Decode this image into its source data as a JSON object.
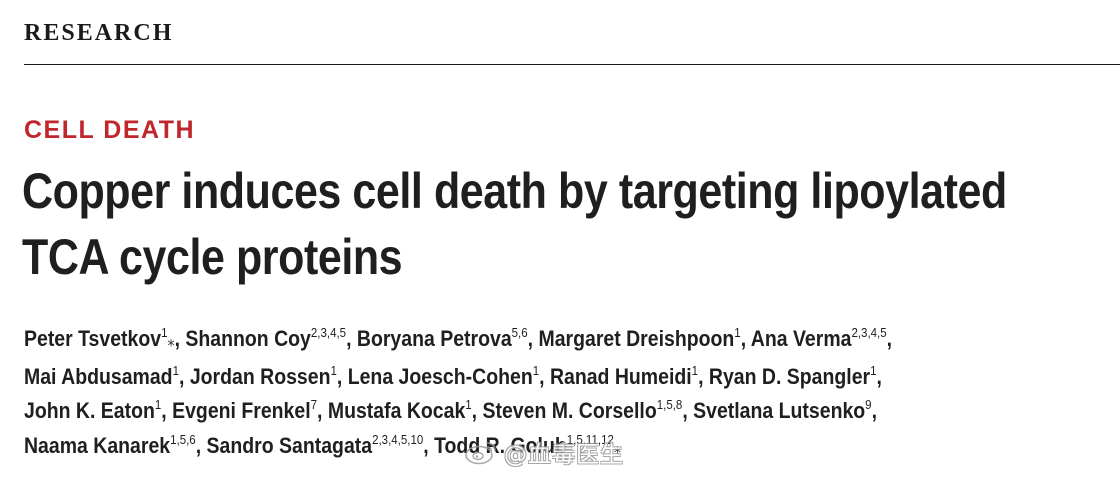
{
  "header": {
    "section": "RESEARCH"
  },
  "article": {
    "category": "CELL DEATH",
    "title_lines": [
      "Copper induces cell death by targeting lipoylated",
      "TCA cycle proteins"
    ]
  },
  "authors": {
    "lines": [
      [
        {
          "name": "Peter Tsvetkov",
          "aff": "1",
          "star": true,
          "sep": ", "
        },
        {
          "name": "Shannon Coy",
          "aff": "2,3,4,5",
          "star": false,
          "sep": ", "
        },
        {
          "name": "Boryana Petrova",
          "aff": "5,6",
          "star": false,
          "sep": ", "
        },
        {
          "name": "Margaret Dreishpoon",
          "aff": "1",
          "star": false,
          "sep": ", "
        },
        {
          "name": "Ana Verma",
          "aff": "2,3,4,5",
          "star": false,
          "sep": ","
        }
      ],
      [
        {
          "name": "Mai Abdusamad",
          "aff": "1",
          "star": false,
          "sep": ", "
        },
        {
          "name": "Jordan Rossen",
          "aff": "1",
          "star": false,
          "sep": ", "
        },
        {
          "name": "Lena Joesch-Cohen",
          "aff": "1",
          "star": false,
          "sep": ", "
        },
        {
          "name": "Ranad Humeidi",
          "aff": "1",
          "star": false,
          "sep": ", "
        },
        {
          "name": "Ryan D. Spangler",
          "aff": "1",
          "star": false,
          "sep": ","
        }
      ],
      [
        {
          "name": "John K. Eaton",
          "aff": "1",
          "star": false,
          "sep": ", "
        },
        {
          "name": "Evgeni Frenkel",
          "aff": "7",
          "star": false,
          "sep": ", "
        },
        {
          "name": "Mustafa Kocak",
          "aff": "1",
          "star": false,
          "sep": ", "
        },
        {
          "name": "Steven M. Corsello",
          "aff": "1,5,8",
          "star": false,
          "sep": ", "
        },
        {
          "name": "Svetlana Lutsenko",
          "aff": "9",
          "star": false,
          "sep": ","
        }
      ],
      [
        {
          "name": "Naama Kanarek",
          "aff": "1,5,6",
          "star": false,
          "sep": ", "
        },
        {
          "name": "Sandro Santagata",
          "aff": "2,3,4,5,10",
          "star": false,
          "sep": ", "
        },
        {
          "name": "Todd R. Golub",
          "aff": "1,5,11,12",
          "star": true,
          "sep": ""
        }
      ]
    ],
    "star_symbol": "⁎"
  },
  "watermark": {
    "text": "@血毒医生",
    "icon": "weibo-logo-icon"
  }
}
